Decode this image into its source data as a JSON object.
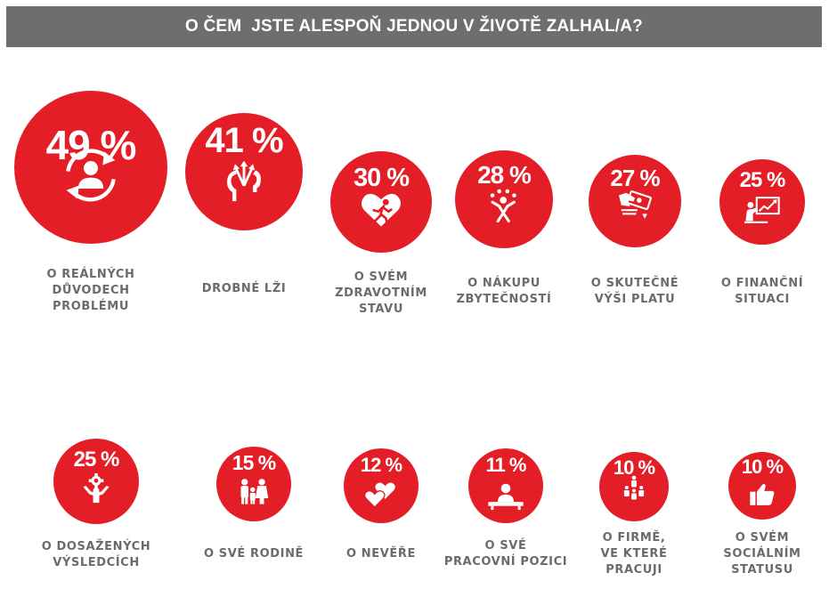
{
  "banner": {
    "title": "O ČEM  JSTE ALESPOŇ JEDNOU V ŽIVOTĚ ZALHAL/A?"
  },
  "colors": {
    "accent": "#e31e26",
    "banner_bg": "#6e6e6e",
    "label_text": "#6b6b6b"
  },
  "chart_data": {
    "type": "bubble",
    "title": "O ČEM  JSTE ALESPOŇ JEDNOU V ŽIVOTĚ ZALHAL/A?",
    "unit": "%",
    "items": [
      {
        "value": 49,
        "value_label": "49 %",
        "label": "O REÁLNÝCH\nDŮVODECH\nPROBLÉMU",
        "icon": "arrows-cycle-person-icon"
      },
      {
        "value": 41,
        "value_label": "41 %",
        "label": "DROBNÉ LŽI",
        "icon": "head-thinking-arrows-icon"
      },
      {
        "value": 30,
        "value_label": "30 %",
        "label": "O SVÉM\nZDRAVOTNÍM\nSTAVU",
        "icon": "heart-running-man-icon"
      },
      {
        "value": 28,
        "value_label": "28 %",
        "label": "O NÁKUPU\nZBYTEČNOSTÍ",
        "icon": "jumping-person-icon"
      },
      {
        "value": 27,
        "value_label": "27 %",
        "label": "O SKUTEČNÉ\nVÝŠI PLATU",
        "icon": "hand-money-icon"
      },
      {
        "value": 25,
        "value_label": "25 %",
        "label": "O FINANČNÍ\nSITUACI",
        "icon": "presentation-chart-icon"
      },
      {
        "value": 25,
        "value_label": "25 %",
        "label": "O DOSAŽENÝCH\nVÝSLEDCÍCH",
        "icon": "gear-person-icon"
      },
      {
        "value": 15,
        "value_label": "15 %",
        "label": "O SVÉ RODINĚ",
        "icon": "family-icon"
      },
      {
        "value": 12,
        "value_label": "12 %",
        "label": "O NEVĚŘE",
        "icon": "hearts-icon"
      },
      {
        "value": 11,
        "value_label": "11 %",
        "label": "O SVÉ\nPRACOVNÍ POZICI",
        "icon": "person-desk-icon"
      },
      {
        "value": 10,
        "value_label": "10 %",
        "label": "O FIRMĚ,\nVE KTERÉ\nPRACUJI",
        "icon": "people-group-icon"
      },
      {
        "value": 10,
        "value_label": "10 %",
        "label": "O SVÉM\nSOCIÁLNÍM\nSTATUSU",
        "icon": "thumbs-up-icon"
      }
    ]
  }
}
